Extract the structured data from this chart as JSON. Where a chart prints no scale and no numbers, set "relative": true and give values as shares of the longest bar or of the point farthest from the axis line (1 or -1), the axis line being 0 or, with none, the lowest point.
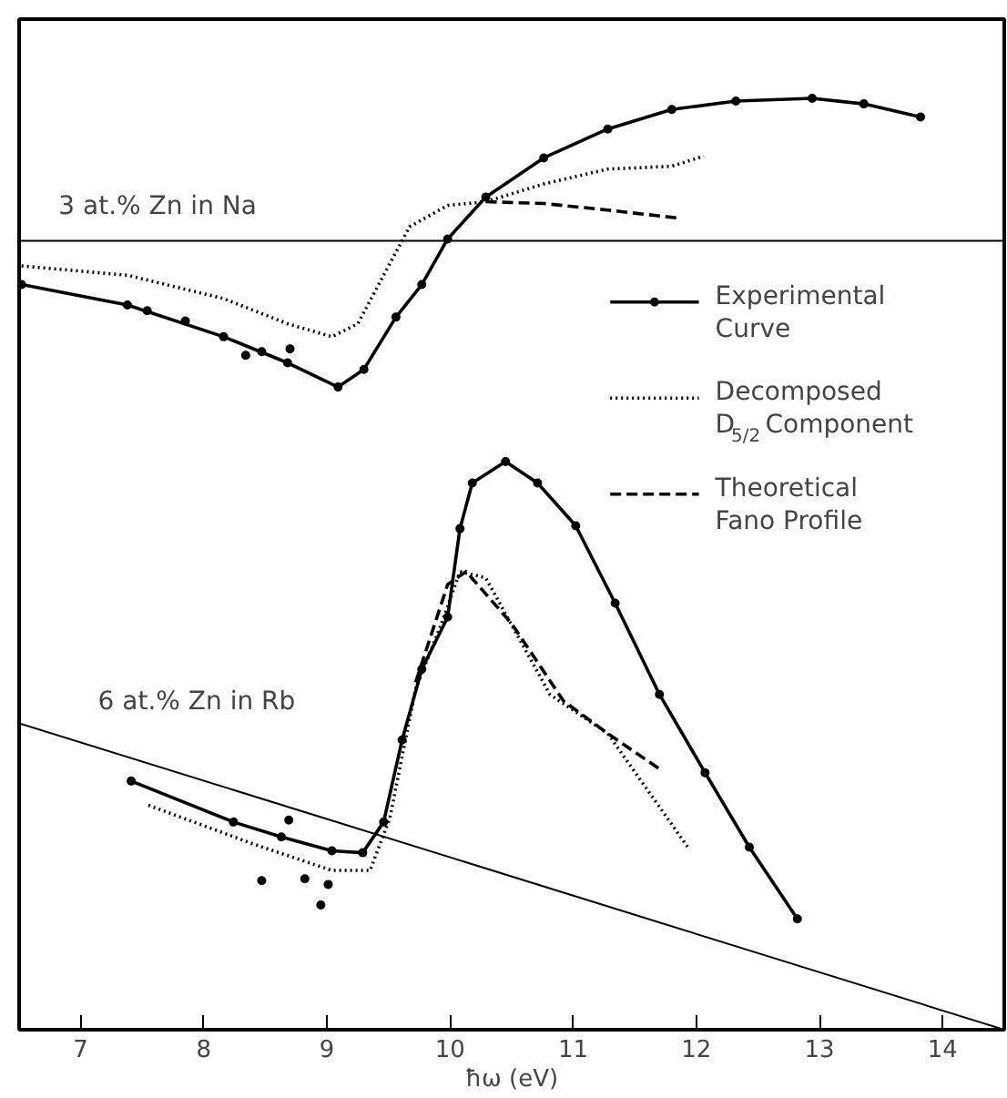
{
  "chart_data": {
    "type": "line",
    "relative": true,
    "xlabel": "ħω (eV)",
    "xlim": [
      6.5,
      14.5
    ],
    "xticks": [
      7,
      8,
      9,
      10,
      11,
      12,
      13,
      14
    ],
    "grid": false,
    "legend": "right",
    "annotations": [
      "3 at.% Zn in Na",
      "6 at.% Zn in Rb"
    ],
    "ref_lines": [
      {
        "axis": "y",
        "value": 0.847
      }
    ],
    "series": [
      {
        "name": "Experimental Curve",
        "color": "#000000",
        "marker": "circle",
        "line_style": "solid",
        "x": [
          6.52,
          7.38,
          8.16,
          8.68,
          9.09,
          9.3,
          9.56,
          9.77,
          9.98,
          10.29,
          10.76,
          11.28,
          11.8,
          12.32,
          12.94,
          13.36,
          13.82
        ],
        "values": [
          0.8,
          0.778,
          0.744,
          0.716,
          0.69,
          0.709,
          0.765,
          0.8,
          0.849,
          0.894,
          0.936,
          0.967,
          0.988,
          0.997,
          1.0,
          0.994,
          0.98
        ]
      },
      {
        "name": "Decomposed D$_{5/2}$ Component",
        "color": "#000000",
        "marker": "none",
        "line_style": "dotted",
        "x": [
          6.52,
          7.38,
          8.16,
          8.68,
          9.04,
          9.25,
          9.67,
          9.98,
          10.29,
          10.76,
          11.28,
          11.8,
          12.06
        ],
        "values": [
          0.82,
          0.81,
          0.785,
          0.758,
          0.744,
          0.758,
          0.862,
          0.885,
          0.889,
          0.908,
          0.924,
          0.927,
          0.938
        ]
      },
      {
        "name": "Theoretical Fano Profile",
        "color": "#000000",
        "marker": "none",
        "line_style": "dashed",
        "x": [
          10.29,
          10.76,
          11.28,
          11.88
        ],
        "values": [
          0.889,
          0.887,
          0.88,
          0.871
        ]
      },
      {
        "color": "#000000",
        "marker": "circle",
        "line_style": "solid",
        "x": [
          7.41,
          8.24,
          8.63,
          9.04,
          9.29,
          9.46,
          9.61,
          9.77,
          9.98,
          10.08,
          10.18,
          10.45,
          10.71,
          11.02,
          11.34,
          11.7,
          12.07,
          12.43,
          12.82
        ],
        "values": [
          0.267,
          0.223,
          0.207,
          0.192,
          0.19,
          0.223,
          0.311,
          0.387,
          0.443,
          0.538,
          0.587,
          0.61,
          0.587,
          0.541,
          0.458,
          0.36,
          0.276,
          0.196,
          0.119
        ]
      },
      {
        "color": "#000000",
        "marker": "none",
        "line_style": "dotted",
        "x": [
          7.55,
          8.41,
          9.04,
          9.35,
          9.51,
          9.72,
          9.93,
          10.08,
          10.29,
          10.81,
          11.28,
          11.93
        ],
        "values": [
          0.241,
          0.199,
          0.171,
          0.171,
          0.227,
          0.366,
          0.436,
          0.492,
          0.485,
          0.36,
          0.318,
          0.196
        ]
      },
      {
        "color": "#000000",
        "marker": "none",
        "line_style": "dashed",
        "x": [
          9.72,
          9.98,
          10.13,
          10.5,
          10.92,
          11.28,
          11.7
        ],
        "values": [
          0.373,
          0.478,
          0.492,
          0.436,
          0.353,
          0.318,
          0.28
        ]
      },
      {
        "type": "scatter",
        "color": "#000000",
        "marker": "circle",
        "x": [
          8.47,
          8.82,
          8.95,
          9.01,
          8.69,
          7.54,
          7.85,
          8.34,
          8.47,
          8.7
        ],
        "values": [
          0.16,
          0.162,
          0.134,
          0.156,
          0.225,
          0.772,
          0.761,
          0.724,
          0.728,
          0.731
        ]
      },
      {
        "color": "#000000",
        "marker": "none",
        "line_style": "solid",
        "x": [
          6.5,
          14.5
        ],
        "values": [
          0.329,
          0.0
        ]
      }
    ]
  }
}
